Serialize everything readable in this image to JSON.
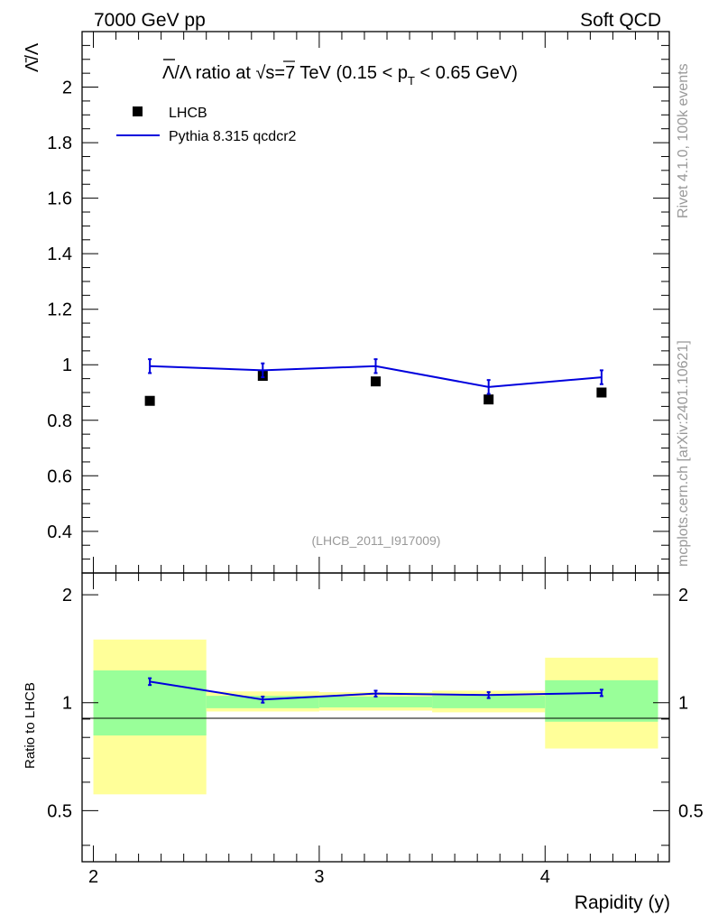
{
  "header": {
    "left": "7000 GeV pp",
    "right": "Soft QCD"
  },
  "side_labels": {
    "rivet": "Rivet 4.1.0,  100k events",
    "mcplots": "mcplots.cern.ch [arXiv:2401.10621]"
  },
  "watermark": "(LHCB_2011_I917009)",
  "colors": {
    "mc": "#0000dd",
    "data": "#000000",
    "band_inner": "#99ff99",
    "band_outer": "#ffff99"
  },
  "chart_data": [
    {
      "type": "scatter",
      "panel": "main",
      "title": "Λ̄/Λ ratio at √s=7 TeV (0.15 < pT < 0.65 GeV)",
      "title_parts": {
        "lead": "/Λ ratio at ",
        "mid": "s=7 TeV (0.15 < p",
        "sub": "T",
        "tail": " < 0.65 GeV)"
      },
      "ylabel": "Λ̄/Λ",
      "xlim": [
        1.95,
        4.55
      ],
      "ylim": [
        0.25,
        2.2
      ],
      "yticks": [
        0.4,
        0.6,
        0.8,
        1.0,
        1.2,
        1.4,
        1.6,
        1.8,
        2.0
      ],
      "ytick_labels": [
        "0.4",
        "0.6",
        "0.8",
        "1",
        "1.2",
        "1.4",
        "1.6",
        "1.8",
        "2"
      ],
      "legend": {
        "placement": "top-left",
        "entries": [
          "LHCB",
          "Pythia 8.315 qcdcr2"
        ]
      },
      "series": [
        {
          "name": "LHCB",
          "style": "markers",
          "x": [
            2.25,
            2.75,
            3.25,
            3.75,
            4.25
          ],
          "values": [
            0.87,
            0.96,
            0.94,
            0.875,
            0.9
          ]
        },
        {
          "name": "Pythia 8.315 qcdcr2",
          "style": "line",
          "x": [
            2.25,
            2.75,
            3.25,
            3.75,
            4.25
          ],
          "values": [
            0.995,
            0.98,
            0.995,
            0.92,
            0.955
          ],
          "errors": [
            0.025,
            0.025,
            0.025,
            0.025,
            0.025
          ]
        }
      ]
    },
    {
      "type": "line",
      "panel": "ratio",
      "ylabel": "Ratio to LHCB",
      "xlabel": "Rapidity (y)",
      "xlim": [
        1.95,
        4.55
      ],
      "ylim": [
        0.36,
        2.3
      ],
      "ylog": true,
      "yticks": [
        0.5,
        1,
        2
      ],
      "ytick_labels": [
        "0.5",
        "1",
        "2"
      ],
      "xticks": [
        2,
        3,
        4
      ],
      "xtick_labels": [
        "2",
        "3",
        "4"
      ],
      "bands": [
        {
          "x": [
            2.0,
            2.5
          ],
          "inner": [
            0.81,
            1.23
          ],
          "outer": [
            0.555,
            1.5
          ]
        },
        {
          "x": [
            2.5,
            3.0
          ],
          "inner": [
            0.965,
            1.045
          ],
          "outer": [
            0.945,
            1.075
          ]
        },
        {
          "x": [
            3.0,
            3.5
          ],
          "inner": [
            0.97,
            1.04
          ],
          "outer": [
            0.95,
            1.07
          ]
        },
        {
          "x": [
            3.5,
            4.0
          ],
          "inner": [
            0.965,
            1.045
          ],
          "outer": [
            0.94,
            1.08
          ]
        },
        {
          "x": [
            4.0,
            4.5
          ],
          "inner": [
            0.885,
            1.155
          ],
          "outer": [
            0.745,
            1.335
          ]
        }
      ],
      "series": [
        {
          "name": "Pythia 8.315 qcdcr2 / LHCB",
          "x": [
            2.25,
            2.75,
            3.25,
            3.75,
            4.25
          ],
          "values": [
            1.145,
            1.02,
            1.06,
            1.05,
            1.065
          ],
          "errors": [
            0.025,
            0.02,
            0.02,
            0.02,
            0.022
          ]
        }
      ]
    }
  ]
}
